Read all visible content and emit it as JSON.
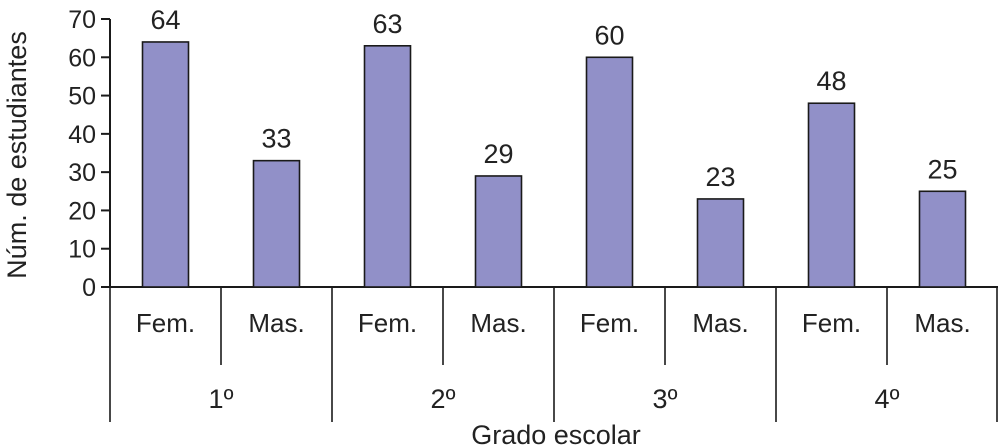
{
  "chart_data": {
    "type": "bar",
    "title": "",
    "xlabel": "Grado escolar",
    "ylabel": "Núm. de estudiantes",
    "ylim": [
      0,
      70
    ],
    "yticks": [
      0,
      10,
      20,
      30,
      40,
      50,
      60,
      70
    ],
    "groups": [
      {
        "label": "1º",
        "categories": [
          "Fem.",
          "Mas."
        ],
        "values": [
          64,
          33
        ]
      },
      {
        "label": "2º",
        "categories": [
          "Fem.",
          "Mas."
        ],
        "values": [
          63,
          29
        ]
      },
      {
        "label": "3º",
        "categories": [
          "Fem.",
          "Mas."
        ],
        "values": [
          60,
          23
        ]
      },
      {
        "label": "4º",
        "categories": [
          "Fem.",
          "Mas."
        ],
        "values": [
          48,
          25
        ]
      }
    ],
    "bar_color": "#9190c8",
    "bar_stroke": "#1a1a1a",
    "grid": false,
    "legend": "none"
  }
}
